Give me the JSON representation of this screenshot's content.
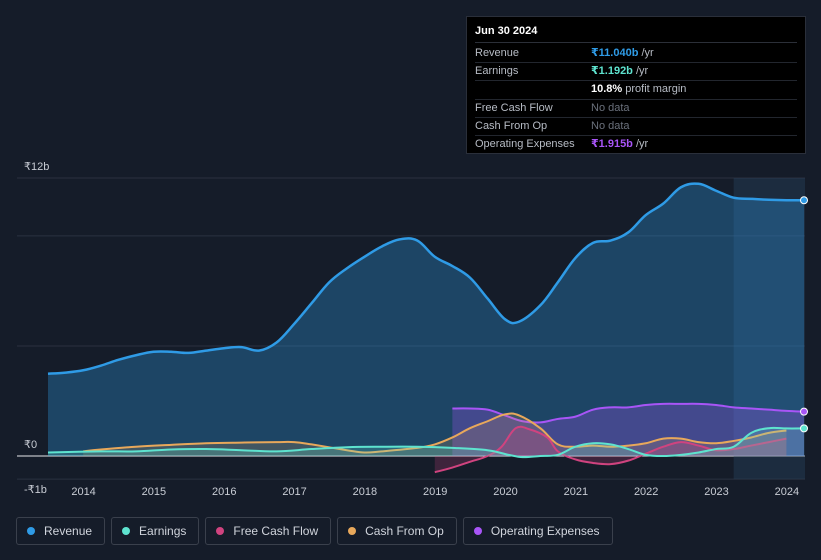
{
  "tooltip": {
    "date": "Jun 30 2024",
    "rows": [
      {
        "label": "Revenue",
        "value": "₹11.040b",
        "unit": " /yr",
        "color": "#2f9be6"
      },
      {
        "label": "Earnings",
        "value": "₹1.192b",
        "unit": " /yr",
        "color": "#5ee3cf"
      },
      {
        "label": "",
        "value": "10.8%",
        "unit": " profit margin",
        "color": "#ffffff"
      },
      {
        "label": "Free Cash Flow",
        "value": "No data",
        "unit": "",
        "color": "#6b717c"
      },
      {
        "label": "Cash From Op",
        "value": "No data",
        "unit": "",
        "color": "#6b717c"
      },
      {
        "label": "Operating Expenses",
        "value": "₹1.915b",
        "unit": " /yr",
        "color": "#a855f7"
      }
    ]
  },
  "legend": [
    {
      "label": "Revenue",
      "color": "#2f9be6"
    },
    {
      "label": "Earnings",
      "color": "#5ee3cf"
    },
    {
      "label": "Free Cash Flow",
      "color": "#d0437f"
    },
    {
      "label": "Cash From Op",
      "color": "#e8a85b"
    },
    {
      "label": "Operating Expenses",
      "color": "#a855f7"
    }
  ],
  "chart_data": {
    "type": "area",
    "title": "",
    "xlabel": "",
    "ylabel": "",
    "currency_unit": "₹b",
    "y_tick_labels": [
      "₹12b",
      "₹0",
      "-₹1b"
    ],
    "ylim": [
      -1,
      12
    ],
    "xlim": [
      2013.7,
      2024.5
    ],
    "x_ticks": [
      2014,
      2015,
      2016,
      2017,
      2018,
      2019,
      2020,
      2021,
      2022,
      2023,
      2024
    ],
    "x_tick_labels": [
      "2014",
      "2015",
      "2016",
      "2017",
      "2018",
      "2019",
      "2020",
      "2021",
      "2022",
      "2023",
      "2024"
    ],
    "series": [
      {
        "name": "Revenue",
        "color": "#2f9be6",
        "x": [
          2013.75,
          2014.0,
          2014.25,
          2014.5,
          2014.75,
          2015.0,
          2015.25,
          2015.5,
          2015.75,
          2016.0,
          2016.25,
          2016.5,
          2016.75,
          2017.0,
          2017.25,
          2017.5,
          2017.75,
          2018.0,
          2018.25,
          2018.5,
          2018.75,
          2019.0,
          2019.25,
          2019.5,
          2019.75,
          2020.0,
          2020.25,
          2020.45,
          2020.75,
          2021.0,
          2021.25,
          2021.5,
          2021.75,
          2022.0,
          2022.25,
          2022.5,
          2022.75,
          2023.0,
          2023.25,
          2023.5,
          2023.75,
          2024.0,
          2024.25,
          2024.5
        ],
        "values": [
          3.55,
          3.6,
          3.7,
          3.9,
          4.15,
          4.35,
          4.5,
          4.5,
          4.45,
          4.55,
          4.65,
          4.7,
          4.55,
          4.9,
          5.7,
          6.6,
          7.5,
          8.1,
          8.6,
          9.05,
          9.35,
          9.3,
          8.6,
          8.2,
          7.7,
          6.8,
          5.9,
          5.8,
          6.5,
          7.5,
          8.55,
          9.2,
          9.3,
          9.65,
          10.4,
          10.9,
          11.6,
          11.75,
          11.45,
          11.15,
          11.1,
          11.06,
          11.04,
          11.04
        ]
      },
      {
        "name": "Earnings",
        "color": "#5ee3cf",
        "x": [
          2013.75,
          2014.5,
          2015.0,
          2015.5,
          2016.0,
          2016.5,
          2017.0,
          2017.5,
          2018.0,
          2018.5,
          2019.0,
          2019.5,
          2020.0,
          2020.3,
          2020.5,
          2020.75,
          2021.0,
          2021.25,
          2021.5,
          2021.75,
          2022.0,
          2022.25,
          2022.5,
          2022.75,
          2023.0,
          2023.25,
          2023.5,
          2023.75,
          2024.0,
          2024.25,
          2024.5
        ],
        "values": [
          0.15,
          0.2,
          0.2,
          0.28,
          0.3,
          0.25,
          0.2,
          0.3,
          0.38,
          0.4,
          0.4,
          0.35,
          0.25,
          0.05,
          -0.05,
          0.0,
          0.05,
          0.4,
          0.55,
          0.5,
          0.3,
          0.05,
          0.0,
          0.05,
          0.15,
          0.3,
          0.4,
          1.0,
          1.2,
          1.19,
          1.192
        ]
      },
      {
        "name": "Free Cash Flow",
        "color": "#d0437f",
        "x": [
          2019.25,
          2019.5,
          2019.75,
          2020.0,
          2020.2,
          2020.4,
          2020.6,
          2020.85,
          2021.0,
          2021.25,
          2021.5,
          2021.75,
          2022.0,
          2022.25,
          2022.5,
          2022.75,
          2023.0,
          2023.25,
          2023.5,
          2023.75,
          2024.0,
          2024.25
        ],
        "values": [
          -0.7,
          -0.5,
          -0.25,
          0.0,
          0.4,
          1.2,
          1.15,
          0.8,
          0.2,
          -0.15,
          -0.3,
          -0.35,
          -0.2,
          0.1,
          0.4,
          0.6,
          0.45,
          0.25,
          0.3,
          0.45,
          0.6,
          0.75
        ]
      },
      {
        "name": "Cash From Op",
        "color": "#e8a85b",
        "x": [
          2014.25,
          2014.5,
          2015.0,
          2015.5,
          2016.0,
          2016.5,
          2017.0,
          2017.25,
          2017.5,
          2018.0,
          2018.25,
          2018.5,
          2019.0,
          2019.25,
          2019.5,
          2019.75,
          2020.0,
          2020.25,
          2020.45,
          2020.75,
          2021.0,
          2021.25,
          2021.5,
          2021.75,
          2022.0,
          2022.25,
          2022.5,
          2022.75,
          2023.0,
          2023.25,
          2023.5,
          2023.75,
          2024.0,
          2024.25
        ],
        "values": [
          0.2,
          0.28,
          0.4,
          0.48,
          0.55,
          0.58,
          0.6,
          0.6,
          0.5,
          0.25,
          0.15,
          0.2,
          0.35,
          0.5,
          0.8,
          1.2,
          1.5,
          1.8,
          1.75,
          1.2,
          0.5,
          0.4,
          0.45,
          0.4,
          0.45,
          0.55,
          0.75,
          0.75,
          0.6,
          0.55,
          0.65,
          0.8,
          1.0,
          1.1
        ]
      },
      {
        "name": "Operating Expenses",
        "color": "#a855f7",
        "x": [
          2019.5,
          2019.75,
          2020.0,
          2020.25,
          2020.5,
          2020.75,
          2021.0,
          2021.25,
          2021.5,
          2021.75,
          2022.0,
          2022.25,
          2022.5,
          2022.75,
          2023.0,
          2023.25,
          2023.5,
          2023.75,
          2024.0,
          2024.25,
          2024.5
        ],
        "values": [
          2.05,
          2.05,
          2.0,
          1.75,
          1.5,
          1.45,
          1.6,
          1.7,
          2.0,
          2.1,
          2.1,
          2.2,
          2.25,
          2.25,
          2.25,
          2.2,
          2.1,
          2.05,
          2.0,
          1.95,
          1.915
        ]
      }
    ]
  }
}
